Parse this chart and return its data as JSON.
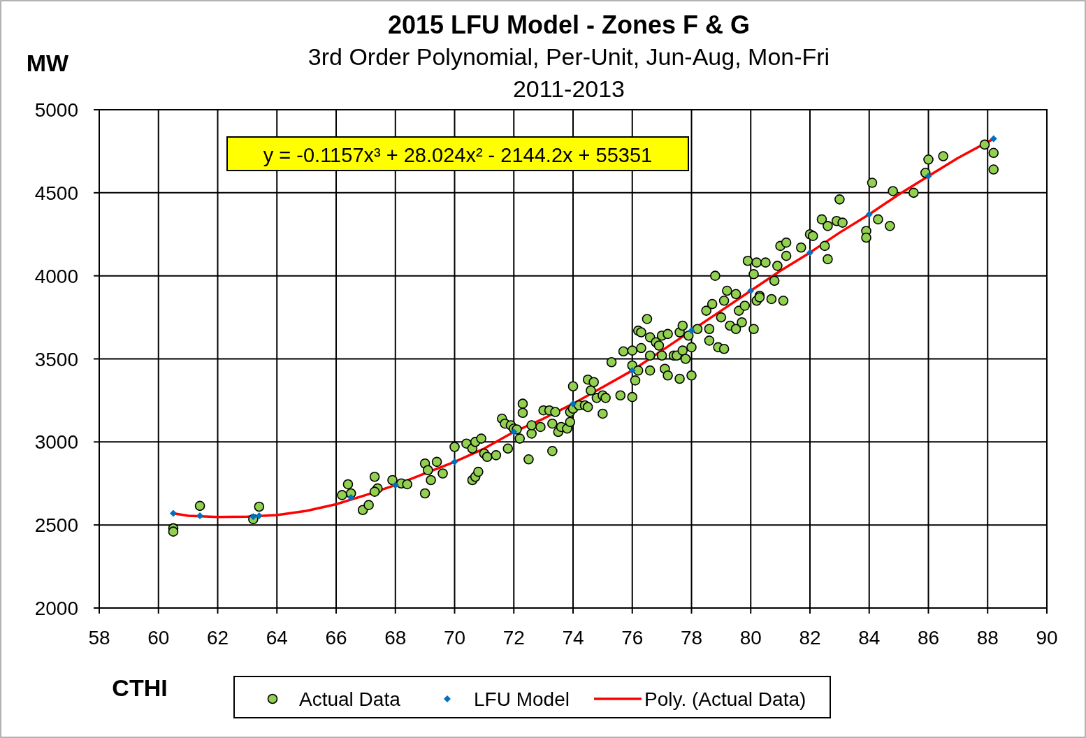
{
  "chart_data": {
    "type": "scatter",
    "title": "2015 LFU Model - Zones F & G",
    "subtitle": "3rd Order Polynomial, Per-Unit, Jun-Aug, Mon-Fri\n2011-2013",
    "xlabel": "CTHI",
    "ylabel": "MW",
    "annotations": [
      "y = -0.1157x³ + 28.024x² - 2144.2x  + 55351"
    ],
    "xlim": [
      58,
      90
    ],
    "xticks": [
      58,
      60,
      62,
      64,
      66,
      68,
      70,
      72,
      74,
      76,
      78,
      80,
      82,
      84,
      86,
      88,
      90
    ],
    "ylim": [
      2000,
      5000
    ],
    "yticks": [
      2000,
      2500,
      3000,
      3500,
      4000,
      4500,
      5000
    ],
    "grid": true,
    "legend": "bottom",
    "series": [
      {
        "name": "Actual Data",
        "marker": "circle",
        "color": "#92d050",
        "x": [
          60.5,
          60.5,
          61.4,
          63.2,
          63.4,
          66.2,
          66.4,
          66.5,
          66.9,
          67.1,
          67.3,
          67.4,
          67.3,
          67.9,
          68.2,
          68.4,
          69.0,
          69.0,
          69.1,
          69.2,
          69.4,
          69.6,
          70.0,
          70.4,
          70.6,
          70.6,
          70.7,
          70.8,
          70.7,
          70.9,
          71.0,
          71.1,
          71.4,
          71.6,
          71.7,
          71.8,
          71.9,
          72.0,
          72.1,
          72.2,
          72.3,
          72.3,
          72.5,
          72.6,
          72.6,
          72.9,
          73.0,
          73.2,
          73.3,
          73.3,
          73.4,
          73.5,
          73.6,
          73.8,
          73.9,
          73.9,
          74.0,
          74.0,
          74.2,
          74.4,
          74.5,
          74.5,
          74.6,
          74.7,
          74.8,
          75.0,
          75.0,
          75.1,
          75.3,
          75.6,
          75.7,
          76.0,
          76.0,
          76.0,
          76.1,
          76.2,
          76.2,
          76.3,
          76.3,
          76.5,
          76.6,
          76.6,
          76.6,
          76.8,
          76.9,
          77.0,
          77.0,
          77.1,
          77.2,
          77.2,
          77.4,
          77.5,
          77.6,
          77.6,
          77.7,
          77.7,
          77.8,
          77.9,
          78.0,
          78.0,
          78.2,
          78.5,
          78.6,
          78.6,
          78.7,
          78.8,
          78.9,
          79.0,
          79.1,
          79.1,
          79.2,
          79.3,
          79.5,
          79.5,
          79.6,
          79.7,
          79.8,
          79.9,
          80.1,
          80.1,
          80.2,
          80.2,
          80.3,
          80.3,
          80.5,
          80.7,
          80.8,
          80.9,
          81.0,
          81.1,
          81.2,
          81.2,
          81.7,
          82.0,
          82.1,
          82.4,
          82.5,
          82.6,
          82.6,
          82.9,
          83.0,
          83.1,
          83.9,
          83.9,
          84.1,
          84.3,
          84.7,
          84.8,
          85.5,
          85.9,
          86.0,
          86.5,
          87.9,
          88.2,
          88.2
        ],
        "values": [
          2480,
          2460,
          2615,
          2535,
          2610,
          2680,
          2745,
          2690,
          2590,
          2620,
          2790,
          2720,
          2700,
          2770,
          2750,
          2745,
          2690,
          2870,
          2830,
          2770,
          2880,
          2810,
          2970,
          2990,
          2960,
          2770,
          2790,
          2820,
          3000,
          3020,
          2930,
          2910,
          2920,
          3140,
          3110,
          2960,
          3100,
          3080,
          3075,
          3020,
          3230,
          3175,
          2895,
          3050,
          3100,
          3090,
          3190,
          3190,
          3110,
          2945,
          3180,
          3060,
          3090,
          3080,
          3120,
          3180,
          3335,
          3200,
          3220,
          3220,
          3210,
          3375,
          3310,
          3360,
          3265,
          3280,
          3170,
          3265,
          3480,
          3280,
          3545,
          3550,
          3460,
          3270,
          3370,
          3430,
          3670,
          3660,
          3565,
          3740,
          3630,
          3520,
          3430,
          3600,
          3580,
          3640,
          3520,
          3440,
          3650,
          3400,
          3520,
          3520,
          3380,
          3660,
          3700,
          3550,
          3500,
          3640,
          3400,
          3570,
          3680,
          3790,
          3610,
          3680,
          3830,
          4000,
          3570,
          3750,
          3850,
          3560,
          3910,
          3700,
          3890,
          3680,
          3790,
          3720,
          3820,
          4090,
          3680,
          4010,
          4080,
          3850,
          3880,
          3870,
          4080,
          3860,
          3970,
          4060,
          4180,
          3850,
          4200,
          4120,
          4170,
          4250,
          4240,
          4340,
          4180,
          4100,
          4300,
          4330,
          4460,
          4320,
          4270,
          4230,
          4560,
          4340,
          4300,
          4510,
          4500,
          4620,
          4700,
          4720,
          4790,
          4740,
          4640
        ]
      },
      {
        "name": "LFU Model",
        "type": "scatter",
        "marker": "diamond",
        "color": "#0070c0",
        "x": [
          60.5,
          61.4,
          63.2,
          63.4,
          66.5,
          68,
          70,
          72,
          74,
          76,
          78,
          80,
          82,
          84,
          86,
          88.2
        ],
        "values": [
          2570,
          2555,
          2550,
          2555,
          2665,
          2740,
          2880,
          3060,
          3230,
          3430,
          3670,
          3910,
          4140,
          4370,
          4600,
          4825
        ]
      },
      {
        "name": "Poly. (Actual Data)",
        "type": "line",
        "marker": "none",
        "color": "#ff0000",
        "x": [
          60.5,
          61,
          62,
          63,
          64,
          65,
          66,
          67,
          68,
          69,
          70,
          71,
          72,
          73,
          74,
          75,
          76,
          77,
          78,
          79,
          80,
          81,
          82,
          83,
          84,
          85,
          86,
          87,
          88.2
        ],
        "values": [
          2570,
          2555,
          2548,
          2550,
          2560,
          2585,
          2625,
          2680,
          2740,
          2810,
          2880,
          2960,
          3060,
          3140,
          3230,
          3330,
          3430,
          3550,
          3670,
          3790,
          3910,
          4030,
          4140,
          4260,
          4370,
          4490,
          4600,
          4710,
          4825
        ]
      }
    ]
  }
}
